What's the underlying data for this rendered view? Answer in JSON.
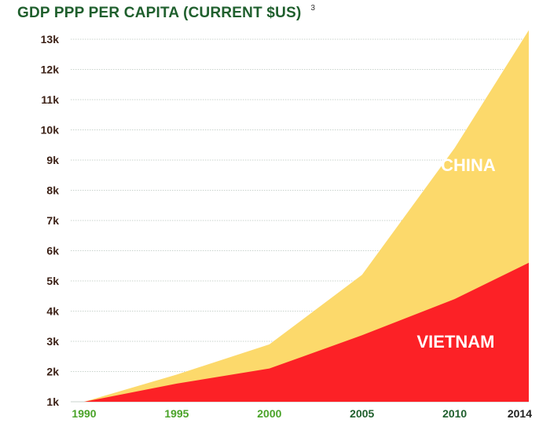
{
  "chart_data": {
    "type": "area",
    "title": "GDP PPP PER CAPITA (CURRENT $US)",
    "footnote": "3",
    "xlabel": "",
    "ylabel": "",
    "x": [
      1990,
      1995,
      2000,
      2005,
      2010,
      2014
    ],
    "x_tick_labels": [
      "1990",
      "1995",
      "2000",
      "2005",
      "2010",
      "2014"
    ],
    "y_tick_labels": [
      "1k",
      "2k",
      "3k",
      "4k",
      "5k",
      "6k",
      "7k",
      "8k",
      "9k",
      "10k",
      "11k",
      "12k",
      "13k"
    ],
    "ylim": [
      1000,
      13000
    ],
    "xlim": [
      1990,
      2014
    ],
    "grid": true,
    "series": [
      {
        "name": "CHINA",
        "values": [
          1000,
          1900,
          2900,
          5200,
          9400,
          13300
        ],
        "color": "#fcd96b"
      },
      {
        "name": "VIETNAM",
        "values": [
          1000,
          1600,
          2100,
          3200,
          4400,
          5600
        ],
        "color": "#fc2126"
      }
    ],
    "tick_colors": {
      "green": "#4aa329",
      "dark_green": "#1f5f2d",
      "black": "#222222"
    }
  }
}
